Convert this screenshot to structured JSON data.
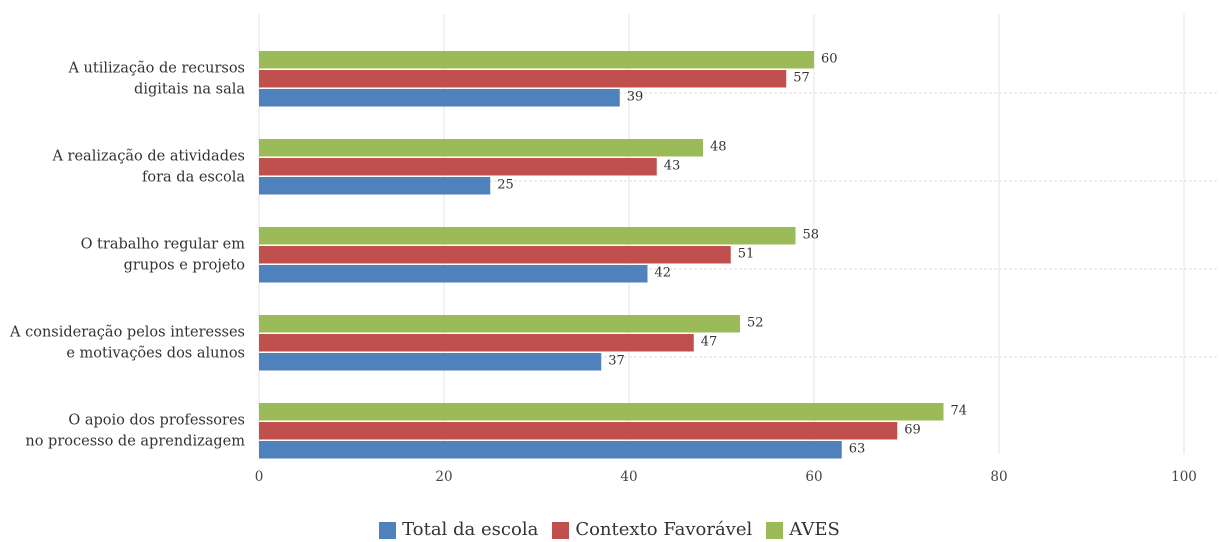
{
  "chart_data": {
    "type": "bar",
    "orientation": "horizontal",
    "categories": [
      [
        "A utilização de recursos",
        "digitais na sala"
      ],
      [
        "A realização de atividades",
        "fora da escola"
      ],
      [
        "O trabalho regular em",
        "grupos e projeto"
      ],
      [
        "A consideração pelos interesses",
        "e motivações dos alunos"
      ],
      [
        "O apoio dos professores",
        "no processo de aprendizagem"
      ]
    ],
    "series": [
      {
        "name": "AVES",
        "color": "#9bbb59",
        "values": [
          60,
          48,
          58,
          52,
          74
        ]
      },
      {
        "name": "Contexto Favorável",
        "color": "#c0504d",
        "values": [
          57,
          43,
          51,
          47,
          69
        ]
      },
      {
        "name": "Total da escola",
        "color": "#4f81bd",
        "values": [
          39,
          25,
          42,
          37,
          63
        ]
      }
    ],
    "xlim": [
      0,
      100
    ],
    "xticks": [
      0,
      20,
      40,
      60,
      80,
      100
    ],
    "grid": true,
    "legend_position": "bottom"
  },
  "legend": {
    "items": [
      {
        "label": "Total da escola",
        "color": "#4f81bd"
      },
      {
        "label": "Contexto Favorável",
        "color": "#c0504d"
      },
      {
        "label": "AVES",
        "color": "#9bbb59"
      }
    ]
  }
}
